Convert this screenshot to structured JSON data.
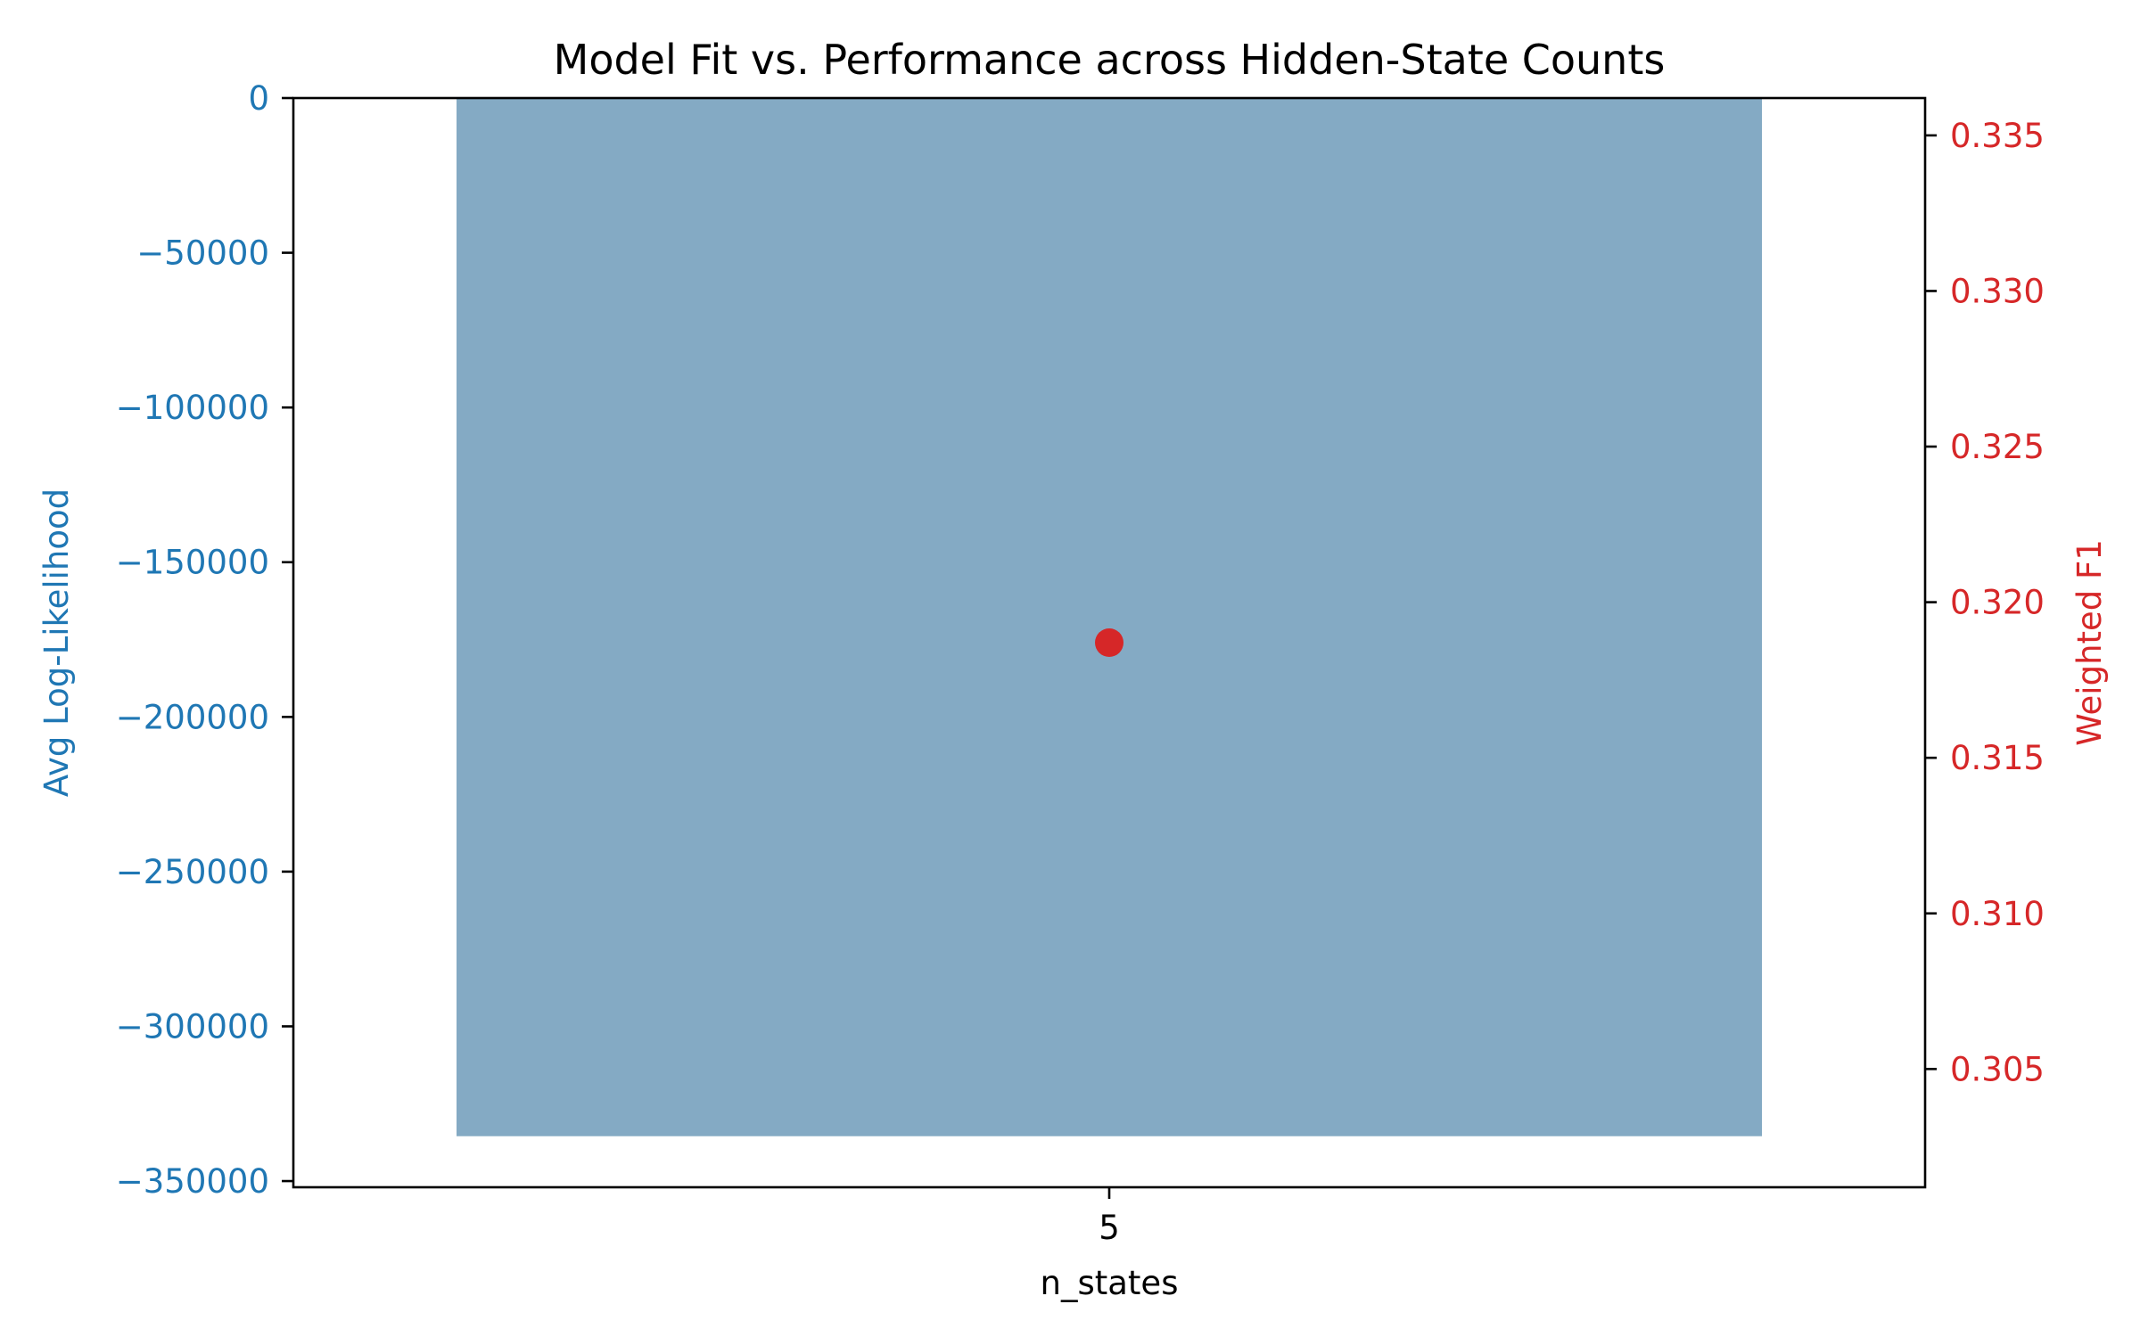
{
  "chart_data": {
    "type": "bar",
    "title": "Model Fit vs. Performance across Hidden-State Counts",
    "xlabel": "n_states",
    "categories": [
      "5"
    ],
    "bar_series": {
      "axis": "left",
      "values": [
        -335500
      ]
    },
    "line_series": {
      "axis": "right",
      "marker": "circle",
      "values": [
        0.3187
      ]
    },
    "left_axis": {
      "label": "Avg Log-Likelihood",
      "ylim": [
        -352000,
        0
      ],
      "ticks": [
        0,
        -50000,
        -100000,
        -150000,
        -200000,
        -250000,
        -300000,
        -350000
      ],
      "tick_labels": [
        "0",
        "−50000",
        "−100000",
        "−150000",
        "−200000",
        "−250000",
        "−300000",
        "−350000"
      ]
    },
    "right_axis": {
      "label": "Weighted F1",
      "ylim": [
        0.3012,
        0.3362
      ],
      "ticks": [
        0.305,
        0.31,
        0.315,
        0.32,
        0.325,
        0.33,
        0.335
      ],
      "tick_labels": [
        "0.305",
        "0.310",
        "0.315",
        "0.320",
        "0.325",
        "0.330",
        "0.335"
      ]
    },
    "grid": false,
    "colors": {
      "bar": "#84aac4",
      "left_axis": "#1f77b4",
      "right_axis": "#d62728",
      "point": "#d62728",
      "frame": "#000000",
      "text": "#000000"
    }
  }
}
